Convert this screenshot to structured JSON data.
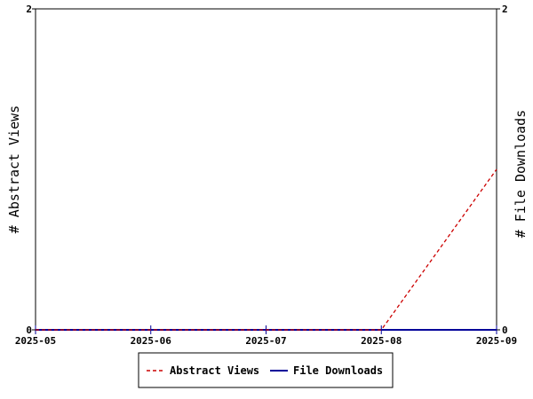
{
  "chart_data": {
    "type": "line",
    "x": [
      "2025-05",
      "2025-06",
      "2025-07",
      "2025-08",
      "2025-09"
    ],
    "xlabel": "",
    "y_left": {
      "label": "# Abstract Views",
      "ylim": [
        0,
        2
      ],
      "ticks": [
        "0",
        "2"
      ]
    },
    "y_right": {
      "label": "# File Downloads",
      "ylim": [
        0,
        2
      ],
      "ticks": [
        "0",
        "2"
      ]
    },
    "series": [
      {
        "name": "Abstract Views",
        "axis": "left",
        "color": "#cc0000",
        "style": "dashed",
        "values": [
          0,
          0,
          0,
          0,
          1
        ]
      },
      {
        "name": "File Downloads",
        "axis": "right",
        "color": "#000099",
        "style": "solid",
        "values": [
          0,
          0,
          0,
          0,
          0
        ]
      }
    ],
    "grid": false,
    "legend_position": "bottom"
  }
}
